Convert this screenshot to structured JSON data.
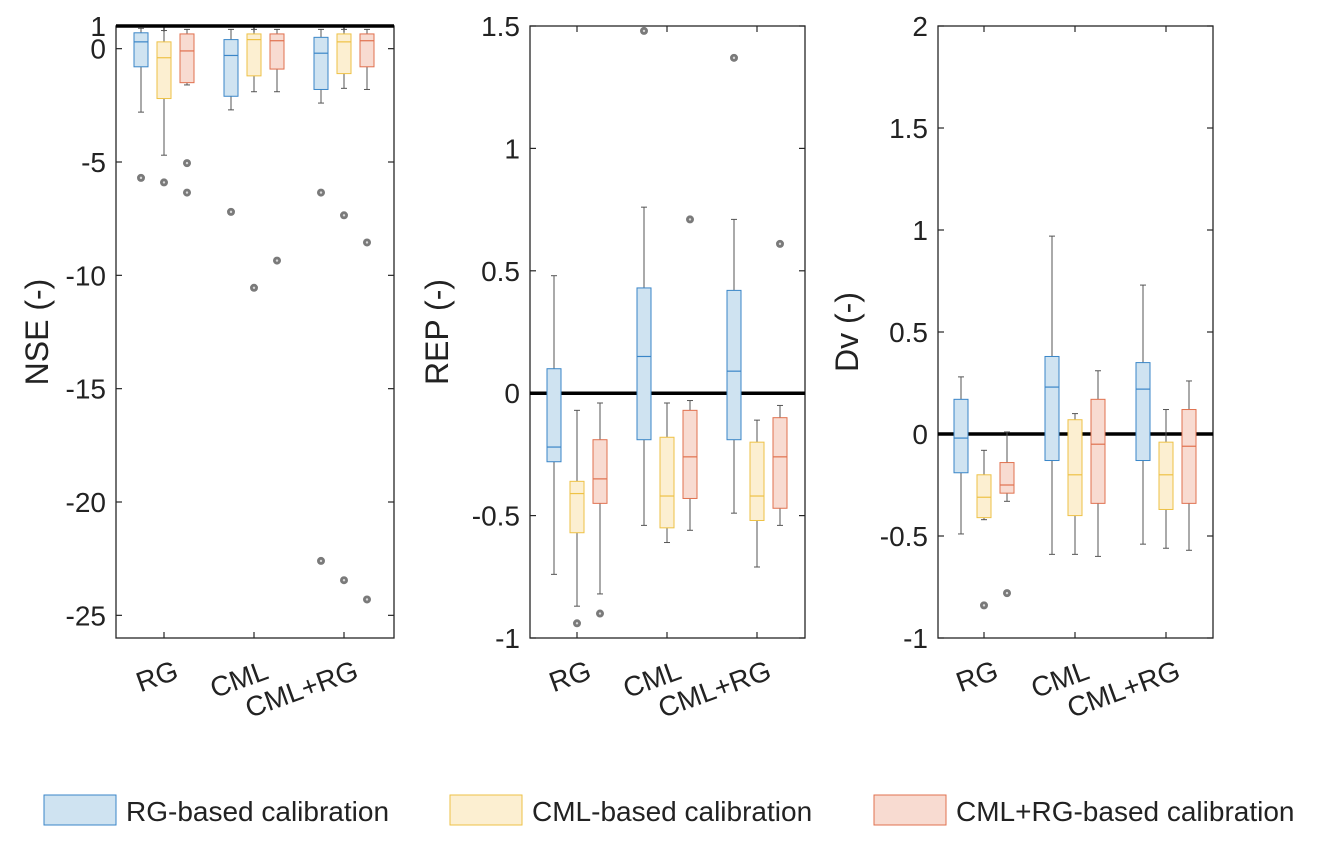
{
  "legend": [
    {
      "label": "RG-based calibration",
      "fill": "#cfe3f1",
      "stroke": "#3a86c8"
    },
    {
      "label": "CML-based calibration",
      "fill": "#fcefd1",
      "stroke": "#eec246"
    },
    {
      "label": "CML+RG-based calibration",
      "fill": "#f8dbd1",
      "stroke": "#e0714f"
    }
  ],
  "outlier_color": "#7a7a7a",
  "chart_data": [
    {
      "type": "boxplot",
      "ylabel": "NSE (-)",
      "ylim": [
        -26,
        1
      ],
      "yticks": [
        1,
        0,
        -5,
        -10,
        -15,
        -20,
        -25
      ],
      "ytick_labels": [
        "1",
        "0",
        "-5",
        "-10",
        "-15",
        "-20",
        "-25"
      ],
      "reference_line": 1,
      "categories": [
        "RG",
        "CML",
        "CML+RG"
      ],
      "series": [
        {
          "name": "RG-based calibration",
          "boxes": [
            {
              "whisker_low": -2.8,
              "q1": -0.8,
              "median": 0.3,
              "q3": 0.7,
              "whisker_high": 0.9,
              "outliers": [
                -5.7
              ]
            },
            {
              "whisker_low": -2.7,
              "q1": -2.1,
              "median": -0.3,
              "q3": 0.4,
              "whisker_high": 0.85,
              "outliers": [
                -7.2
              ]
            },
            {
              "whisker_low": -2.4,
              "q1": -1.8,
              "median": -0.2,
              "q3": 0.5,
              "whisker_high": 0.85,
              "outliers": [
                -6.35,
                -22.6
              ]
            }
          ]
        },
        {
          "name": "CML-based calibration",
          "boxes": [
            {
              "whisker_low": -4.7,
              "q1": -2.2,
              "median": -0.4,
              "q3": 0.3,
              "whisker_high": 0.8,
              "outliers": [
                -5.9
              ]
            },
            {
              "whisker_low": -1.9,
              "q1": -1.2,
              "median": 0.4,
              "q3": 0.65,
              "whisker_high": 0.85,
              "outliers": [
                -10.55
              ]
            },
            {
              "whisker_low": -1.75,
              "q1": -1.1,
              "median": 0.3,
              "q3": 0.65,
              "whisker_high": 0.85,
              "outliers": [
                -7.35,
                -23.45
              ]
            }
          ]
        },
        {
          "name": "CML+RG-based calibration",
          "boxes": [
            {
              "whisker_low": -1.6,
              "q1": -1.5,
              "median": -0.1,
              "q3": 0.65,
              "whisker_high": 0.85,
              "outliers": [
                -5.05,
                -6.35
              ]
            },
            {
              "whisker_low": -1.9,
              "q1": -0.9,
              "median": 0.35,
              "q3": 0.65,
              "whisker_high": 0.85,
              "outliers": [
                -9.35
              ]
            },
            {
              "whisker_low": -1.8,
              "q1": -0.8,
              "median": 0.35,
              "q3": 0.65,
              "whisker_high": 0.85,
              "outliers": [
                -8.55,
                -24.3
              ]
            }
          ]
        }
      ]
    },
    {
      "type": "boxplot",
      "ylabel": "REP (-)",
      "ylim": [
        -1,
        1.5
      ],
      "yticks": [
        1.5,
        1,
        0.5,
        0,
        -0.5,
        -1
      ],
      "ytick_labels": [
        "1.5",
        "1",
        "0.5",
        "0",
        "-0.5",
        "-1"
      ],
      "reference_line": 0,
      "categories": [
        "RG",
        "CML",
        "CML+RG"
      ],
      "series": [
        {
          "name": "RG-based calibration",
          "boxes": [
            {
              "whisker_low": -0.74,
              "q1": -0.28,
              "median": -0.22,
              "q3": 0.1,
              "whisker_high": 0.48,
              "outliers": []
            },
            {
              "whisker_low": -0.54,
              "q1": -0.19,
              "median": 0.15,
              "q3": 0.43,
              "whisker_high": 0.76,
              "outliers": [
                1.48
              ]
            },
            {
              "whisker_low": -0.49,
              "q1": -0.19,
              "median": 0.09,
              "q3": 0.42,
              "whisker_high": 0.71,
              "outliers": [
                1.37
              ]
            }
          ]
        },
        {
          "name": "CML-based calibration",
          "boxes": [
            {
              "whisker_low": -0.87,
              "q1": -0.57,
              "median": -0.41,
              "q3": -0.36,
              "whisker_high": -0.07,
              "outliers": [
                -0.94
              ]
            },
            {
              "whisker_low": -0.61,
              "q1": -0.55,
              "median": -0.42,
              "q3": -0.18,
              "whisker_high": -0.04,
              "outliers": []
            },
            {
              "whisker_low": -0.71,
              "q1": -0.52,
              "median": -0.42,
              "q3": -0.2,
              "whisker_high": -0.11,
              "outliers": []
            }
          ]
        },
        {
          "name": "CML+RG-based calibration",
          "boxes": [
            {
              "whisker_low": -0.82,
              "q1": -0.45,
              "median": -0.35,
              "q3": -0.19,
              "whisker_high": -0.04,
              "outliers": [
                -0.9
              ]
            },
            {
              "whisker_low": -0.56,
              "q1": -0.43,
              "median": -0.26,
              "q3": -0.07,
              "whisker_high": -0.03,
              "outliers": [
                0.71
              ]
            },
            {
              "whisker_low": -0.54,
              "q1": -0.47,
              "median": -0.26,
              "q3": -0.1,
              "whisker_high": -0.05,
              "outliers": [
                0.61
              ]
            }
          ]
        }
      ]
    },
    {
      "type": "boxplot",
      "ylabel": "Dv (-)",
      "ylim": [
        -1,
        2
      ],
      "yticks": [
        2,
        1.5,
        1,
        0.5,
        0,
        -0.5,
        -1
      ],
      "ytick_labels": [
        "2",
        "1.5",
        "1",
        "0.5",
        "0",
        "-0.5",
        "-1"
      ],
      "reference_line": 0,
      "categories": [
        "RG",
        "CML",
        "CML+RG"
      ],
      "series": [
        {
          "name": "RG-based calibration",
          "boxes": [
            {
              "whisker_low": -0.49,
              "q1": -0.19,
              "median": -0.02,
              "q3": 0.17,
              "whisker_high": 0.28,
              "outliers": []
            },
            {
              "whisker_low": -0.59,
              "q1": -0.13,
              "median": 0.23,
              "q3": 0.38,
              "whisker_high": 0.97,
              "outliers": []
            },
            {
              "whisker_low": -0.54,
              "q1": -0.13,
              "median": 0.22,
              "q3": 0.35,
              "whisker_high": 0.73,
              "outliers": []
            }
          ]
        },
        {
          "name": "CML-based calibration",
          "boxes": [
            {
              "whisker_low": -0.42,
              "q1": -0.41,
              "median": -0.31,
              "q3": -0.2,
              "whisker_high": -0.08,
              "outliers": [
                -0.84
              ]
            },
            {
              "whisker_low": -0.59,
              "q1": -0.4,
              "median": -0.2,
              "q3": 0.07,
              "whisker_high": 0.1,
              "outliers": []
            },
            {
              "whisker_low": -0.56,
              "q1": -0.37,
              "median": -0.2,
              "q3": -0.04,
              "whisker_high": 0.12,
              "outliers": []
            }
          ]
        },
        {
          "name": "CML+RG-based calibration",
          "boxes": [
            {
              "whisker_low": -0.33,
              "q1": -0.29,
              "median": -0.25,
              "q3": -0.14,
              "whisker_high": 0.01,
              "outliers": [
                -0.78
              ]
            },
            {
              "whisker_low": -0.6,
              "q1": -0.34,
              "median": -0.05,
              "q3": 0.17,
              "whisker_high": 0.31,
              "outliers": []
            },
            {
              "whisker_low": -0.57,
              "q1": -0.34,
              "median": -0.06,
              "q3": 0.12,
              "whisker_high": 0.26,
              "outliers": []
            }
          ]
        }
      ]
    }
  ]
}
